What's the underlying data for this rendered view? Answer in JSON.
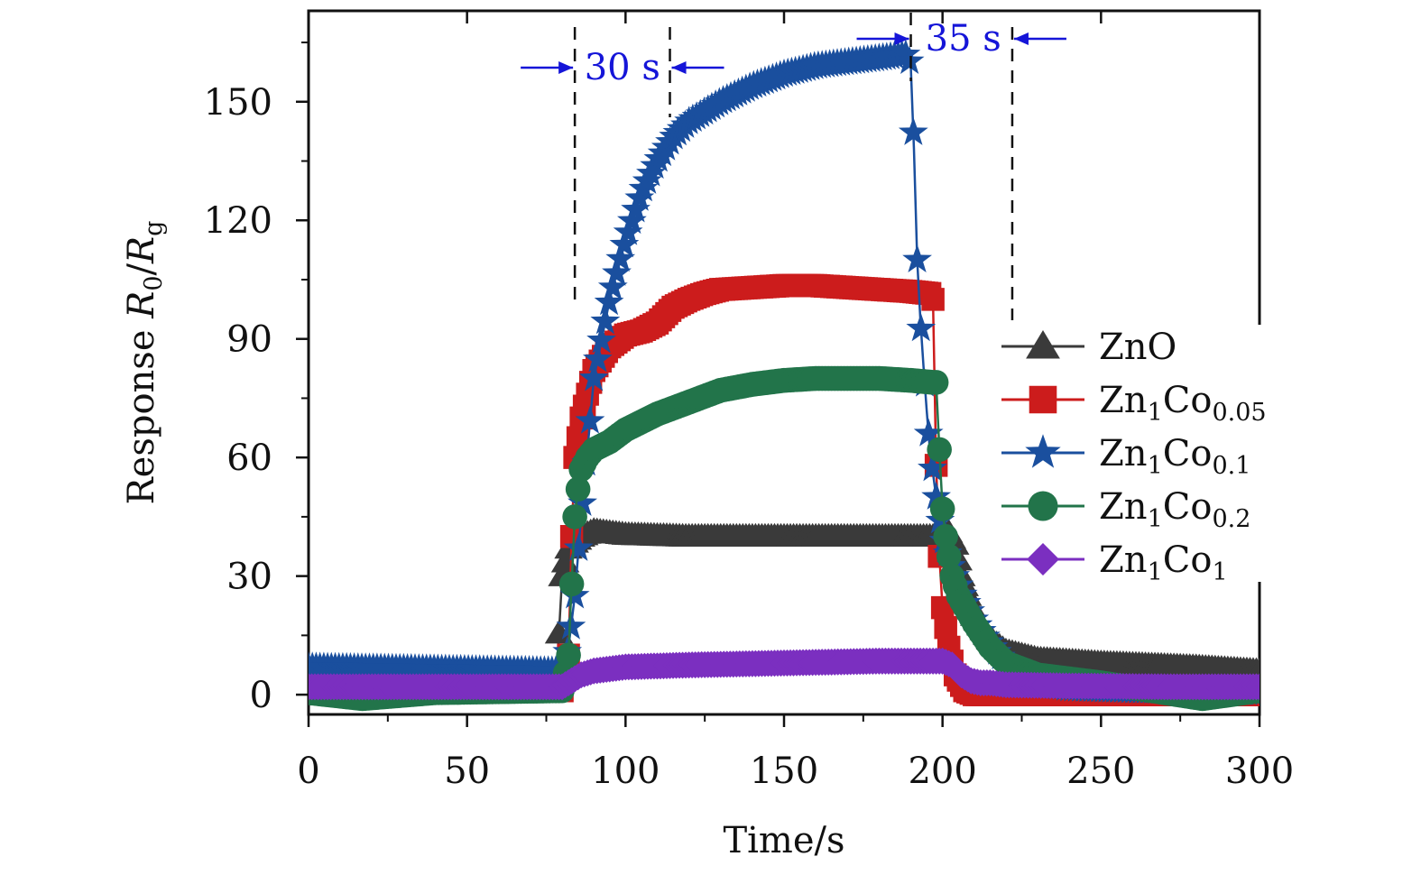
{
  "chart_data": {
    "type": "line",
    "xlabel": "Time/s",
    "ylabel": {
      "prefix": "Response ",
      "num": "R",
      "num_sub": "0",
      "slash": "/",
      "den": "R",
      "den_sub": "g"
    },
    "xlim": [
      0,
      300
    ],
    "ylim": [
      -5,
      173
    ],
    "xticks": [
      0,
      50,
      100,
      150,
      200,
      250,
      300
    ],
    "yticks": [
      0,
      30,
      60,
      90,
      120,
      150
    ],
    "xtick_labels": [
      "0",
      "50",
      "100",
      "150",
      "200",
      "250",
      "300"
    ],
    "ytick_labels": [
      "0",
      "30",
      "60",
      "90",
      "120",
      "150"
    ],
    "grid": false,
    "legend_position": "right",
    "series": [
      {
        "key": "zno",
        "label": "ZnO",
        "sub": "",
        "label2": "",
        "sub2": "",
        "color": "#3a3a3a",
        "marker": "triangle",
        "x": [
          0,
          40,
          78,
          80,
          82,
          86,
          90,
          95,
          100,
          120,
          150,
          180,
          198,
          202,
          204,
          206,
          210,
          215,
          220,
          230,
          250,
          280,
          300
        ],
        "y": [
          3,
          2,
          1,
          30,
          37,
          40,
          41.5,
          41,
          40.5,
          40,
          40,
          40,
          40,
          41,
          38,
          30,
          20,
          14,
          11,
          9,
          8,
          7,
          6
        ]
      },
      {
        "key": "zn1co005",
        "label": "Zn",
        "sub": "1",
        "label2": "Co",
        "sub2": "0.05",
        "color": "#cc1c1c",
        "marker": "square",
        "x": [
          0,
          40,
          80,
          82,
          83,
          84,
          86,
          88,
          90,
          95,
          100,
          105,
          110,
          115,
          120,
          125,
          130,
          140,
          150,
          160,
          170,
          180,
          190,
          196,
          197,
          198,
          199,
          200,
          202,
          204,
          207,
          210,
          220,
          250,
          300
        ],
        "y": [
          1,
          1,
          1,
          10,
          40,
          60,
          70,
          76,
          82,
          88,
          91,
          92,
          94,
          98,
          100,
          101.5,
          102.5,
          103,
          103.5,
          103.5,
          103,
          102.5,
          102,
          101.5,
          100,
          58,
          35,
          22,
          12,
          5,
          1,
          0,
          0,
          0,
          0
        ]
      },
      {
        "key": "zn1co01",
        "label": "Zn",
        "sub": "1",
        "label2": "Co",
        "sub2": "0.1",
        "color": "#1a4f9e",
        "marker": "star",
        "x": [
          0,
          40,
          80,
          82,
          84,
          86,
          88,
          90,
          95,
          100,
          105,
          110,
          115,
          120,
          130,
          140,
          150,
          160,
          170,
          180,
          189,
          190,
          191,
          192,
          193,
          194,
          195,
          196,
          198,
          200,
          203,
          206,
          210,
          215,
          220,
          225,
          230,
          240,
          260,
          300
        ],
        "y": [
          7,
          6.5,
          6,
          12,
          25,
          45,
          62,
          80,
          100,
          115,
          127,
          135,
          141,
          145,
          150,
          154,
          157,
          159,
          160,
          161,
          162,
          159,
          138,
          110,
          95,
          83,
          72,
          62,
          50,
          40,
          32,
          26,
          19,
          13,
          8,
          5,
          3,
          1.5,
          1,
          0.5
        ]
      },
      {
        "key": "zn1co02",
        "label": "Zn",
        "sub": "1",
        "label2": "Co",
        "sub2": "0.2",
        "color": "#22744a",
        "marker": "circle",
        "x": [
          0,
          17,
          40,
          80,
          82,
          83,
          84,
          85,
          86,
          88,
          90,
          95,
          100,
          110,
          120,
          130,
          140,
          150,
          160,
          170,
          180,
          190,
          197,
          198,
          199,
          200,
          201,
          202,
          203,
          205,
          210,
          215,
          220,
          230,
          250,
          282,
          300
        ],
        "y": [
          0.5,
          -1,
          0.5,
          1,
          10,
          28,
          45,
          52,
          57,
          60,
          62,
          64,
          67,
          71,
          74,
          77,
          78.5,
          79.5,
          80,
          80,
          80,
          79.5,
          79,
          79,
          62,
          47,
          40,
          35,
          30,
          25,
          18,
          12,
          8,
          5,
          3,
          -1,
          1
        ]
      },
      {
        "key": "zn1co1",
        "label": "Zn",
        "sub": "1",
        "label2": "Co",
        "sub2": "1",
        "color": "#7b2fc0",
        "marker": "diamond",
        "x": [
          0,
          40,
          80,
          82,
          84,
          86,
          88,
          90,
          95,
          100,
          120,
          150,
          180,
          200,
          203,
          206,
          209,
          212,
          215,
          220,
          240,
          270,
          300
        ],
        "y": [
          2,
          2,
          2,
          3,
          4,
          5,
          5.5,
          6,
          6.5,
          7,
          7.5,
          8,
          8.5,
          8.5,
          7.5,
          5,
          3.5,
          3,
          3,
          2.5,
          2.2,
          2,
          2
        ]
      }
    ],
    "annotations": {
      "response": {
        "label": "30 s",
        "x_start": 84,
        "x_end": 114
      },
      "recovery": {
        "label": "35 s",
        "x_start": 190,
        "x_end": 222
      }
    }
  }
}
